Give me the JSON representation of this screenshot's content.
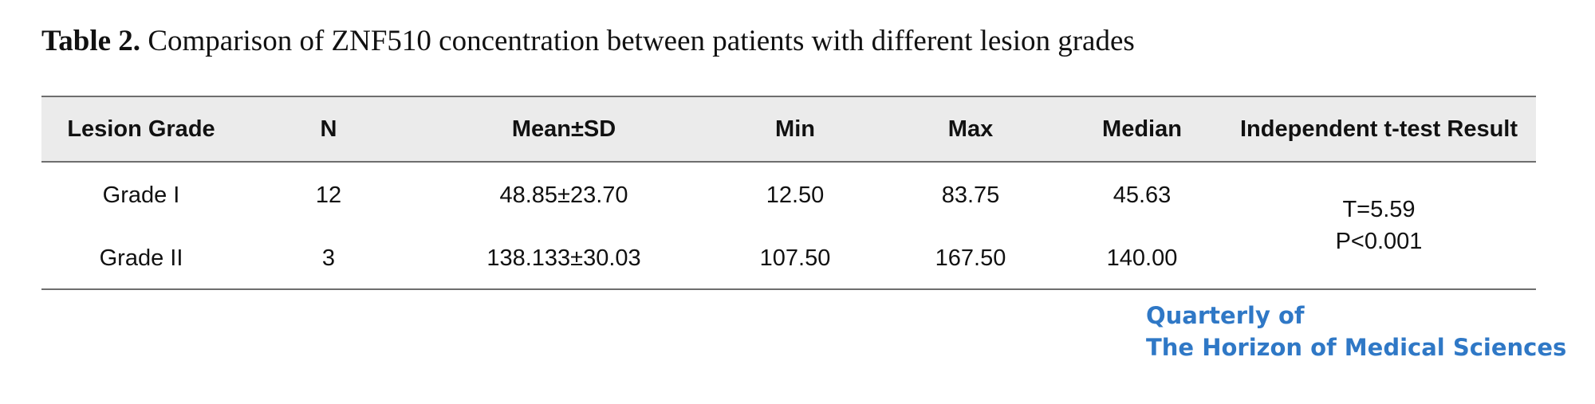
{
  "caption": {
    "label": "Table 2.",
    "text": "Comparison of ZNF510 concentration between patients with different lesion grades"
  },
  "table": {
    "headers": [
      "Lesion Grade",
      "N",
      "Mean±SD",
      "Min",
      "Max",
      "Median",
      "Independent t-test Result"
    ],
    "rows": [
      [
        "Grade I",
        "12",
        "48.85±23.70",
        "12.50",
        "83.75",
        "45.63"
      ],
      [
        "Grade II",
        "3",
        "138.133±30.03",
        "107.50",
        "167.50",
        "140.00"
      ]
    ],
    "ttest": {
      "t": "T=5.59",
      "p": "P<0.001"
    }
  },
  "logo": {
    "line1": "Quarterly of",
    "line2": "The Horizon of Medical Sciences"
  },
  "colors": {
    "header_bg": "#ebebeb",
    "rule": "#6e6e6e",
    "logo_blue": "#2f78c6"
  }
}
